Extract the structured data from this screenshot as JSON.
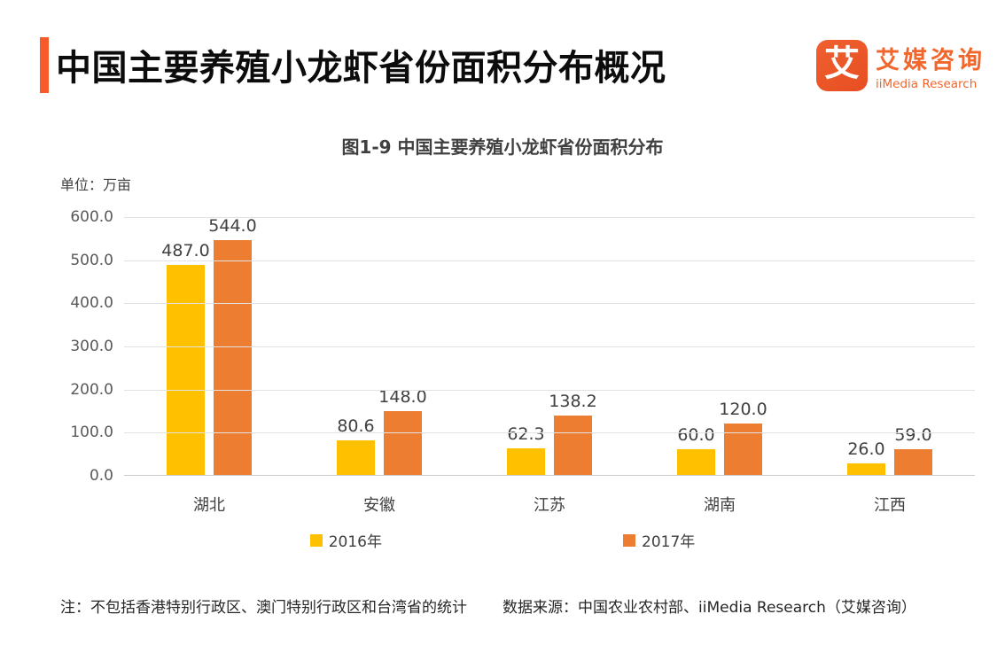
{
  "header": {
    "title": "中国主要养殖小龙虾省份面积分布概况",
    "accent_color": "#F75B2C",
    "logo": {
      "icon_char": "艾",
      "icon_color": "#EB5226",
      "name_cn": "艾媒咨询",
      "name_en": "iiMedia Research",
      "brand_color": "#F0662C"
    }
  },
  "chart": {
    "title": "图1-9 中国主要养殖小龙虾省份面积分布",
    "unit_label": "单位：万亩"
  },
  "chart_data": {
    "type": "bar",
    "title": "图1-9 中国主要养殖小龙虾省份面积分布",
    "unit": "万亩",
    "categories": [
      "湖北",
      "安徽",
      "江苏",
      "湖南",
      "江西"
    ],
    "series": [
      {
        "name": "2016年",
        "color": "#FFC000",
        "values": [
          487.0,
          80.6,
          62.3,
          60.0,
          26.0
        ]
      },
      {
        "name": "2017年",
        "color": "#ED7D31",
        "values": [
          544.0,
          148.0,
          138.2,
          120.0,
          59.0
        ]
      }
    ],
    "ylim": [
      0,
      600
    ],
    "ytick_step": 100,
    "ytick_labels": [
      "0.0",
      "100.0",
      "200.0",
      "300.0",
      "400.0",
      "500.0",
      "600.0"
    ],
    "grid": true,
    "legend_position": "bottom",
    "value_label_decimals": 1
  },
  "footer": {
    "note": "注：不包括香港特别行政区、澳门特别行政区和台湾省的统计",
    "source": "数据来源：中国农业农村部、iiMedia Research（艾媒咨询）"
  }
}
